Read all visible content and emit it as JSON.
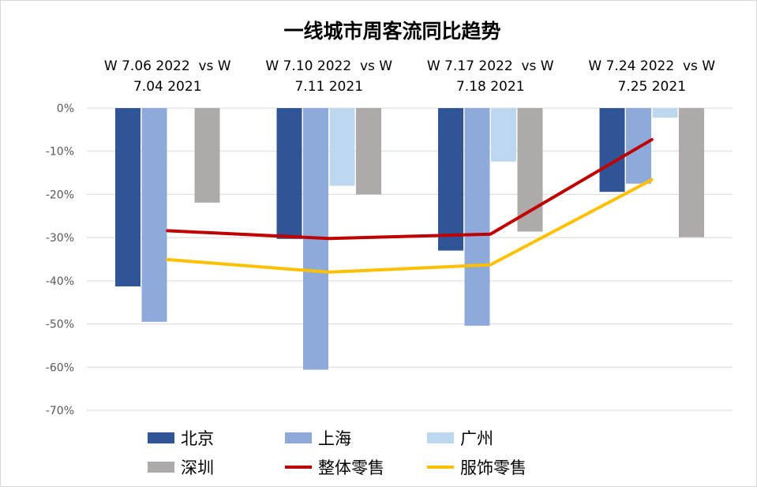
{
  "chart_data": {
    "type": "bar",
    "title": "一线城市周客流同比趋势",
    "categories": [
      [
        "W 7.06 2022  vs W",
        "7.04 2021"
      ],
      [
        "W 7.10 2022  vs W",
        "7.11 2021"
      ],
      [
        "W 7.17 2022  vs W",
        "7.18 2021"
      ],
      [
        "W 7.24 2022  vs W",
        "7.25 2021"
      ]
    ],
    "ylim": [
      -70,
      0
    ],
    "yticks": [
      0,
      -10,
      -20,
      -30,
      -40,
      -50,
      -60,
      -70
    ],
    "ytick_labels": [
      "0%",
      "-10%",
      "-20%",
      "-30%",
      "-40%",
      "-50%",
      "-60%",
      "-70%"
    ],
    "grid": true,
    "legend_position": "bottom",
    "series": [
      {
        "name": "北京",
        "kind": "bar",
        "color": "#2f5597",
        "values": [
          -41.3,
          -30.3,
          -33.0,
          -19.4
        ]
      },
      {
        "name": "上海",
        "kind": "bar",
        "color": "#8eaadb",
        "values": [
          -49.5,
          -60.6,
          -50.4,
          -17.5
        ]
      },
      {
        "name": "广州",
        "kind": "bar",
        "color": "#bdd7ee",
        "values": [
          null,
          -18.0,
          -12.4,
          -2.2
        ]
      },
      {
        "name": "深圳",
        "kind": "bar",
        "color": "#aeaaaa",
        "values": [
          -21.9,
          -20.0,
          -28.6,
          -29.9
        ]
      },
      {
        "name": "整体零售",
        "kind": "line",
        "color": "#c00000",
        "values": [
          -28.4,
          -30.2,
          -29.2,
          -7.3
        ]
      },
      {
        "name": "服饰零售",
        "kind": "line",
        "color": "#ffc000",
        "values": [
          -35.1,
          -38.0,
          -36.3,
          -16.6
        ]
      }
    ]
  }
}
